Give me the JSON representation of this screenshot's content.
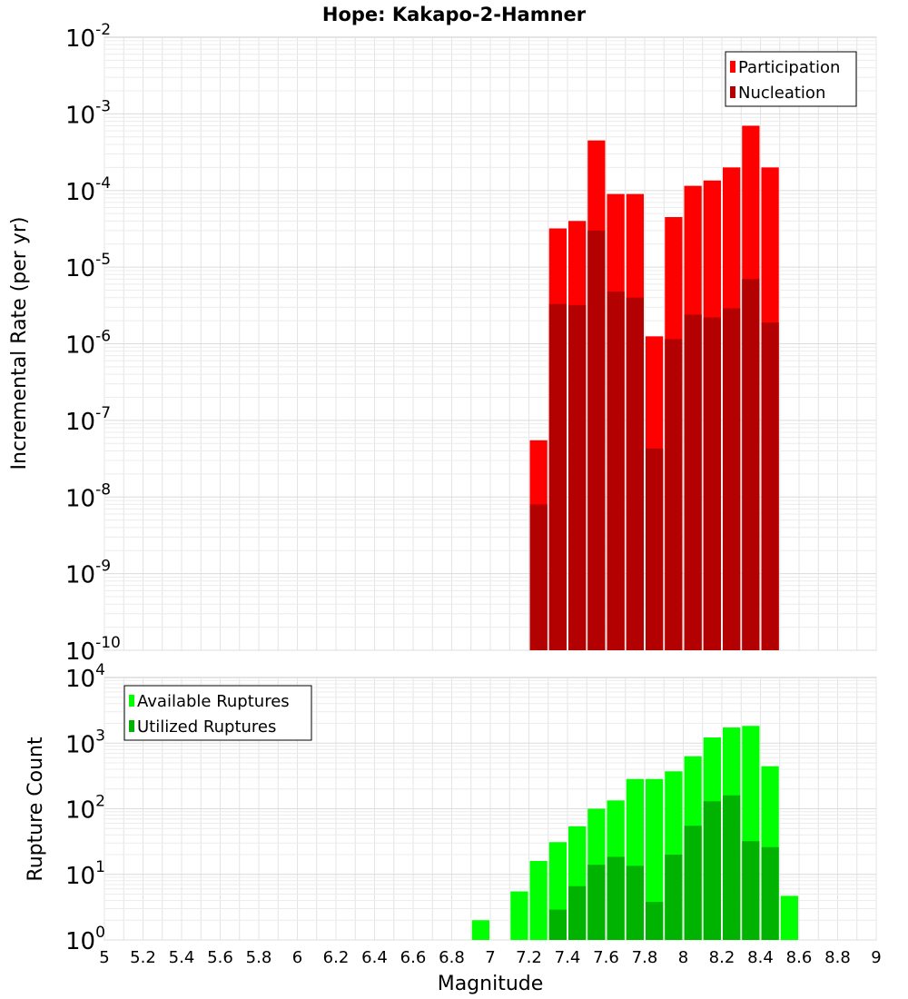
{
  "chart_data": [
    {
      "type": "bar",
      "title": "Hope: Kakapo-2-Hamner",
      "xlabel": "",
      "ylabel": "Incremental Rate (per yr)",
      "xlim": [
        5,
        9
      ],
      "ylim_exp": [
        -10,
        -2
      ],
      "yscale": "log",
      "grid": true,
      "legend_position": "top-right",
      "x": [
        7.25,
        7.35,
        7.45,
        7.55,
        7.65,
        7.75,
        7.85,
        7.95,
        8.05,
        8.15,
        8.25,
        8.35,
        8.45
      ],
      "series": [
        {
          "name": "Participation",
          "color": "#ff0000",
          "values": [
            5.5e-08,
            3.2e-05,
            4e-05,
            0.00045,
            9e-05,
            9e-05,
            1.25e-06,
            4.5e-05,
            0.000115,
            0.000135,
            0.0002,
            0.0007,
            0.0002
          ]
        },
        {
          "name": "Nucleation",
          "color": "#b30000",
          "values": [
            8e-09,
            3.3e-06,
            3.2e-06,
            3e-05,
            4.8e-06,
            4e-06,
            4.3e-08,
            1.15e-06,
            2.4e-06,
            2.2e-06,
            2.9e-06,
            7e-06,
            1.9e-06
          ]
        }
      ]
    },
    {
      "type": "bar",
      "title": "",
      "xlabel": "Magnitude",
      "ylabel": "Rupture Count",
      "xlim": [
        5,
        9
      ],
      "ylim_exp": [
        0,
        4
      ],
      "yscale": "log",
      "grid": true,
      "legend_position": "top-left",
      "xticks": [
        "5",
        "5.2",
        "5.4",
        "5.6",
        "5.8",
        "6",
        "6.2",
        "6.4",
        "6.6",
        "6.8",
        "7",
        "7.2",
        "7.4",
        "7.6",
        "7.8",
        "8",
        "8.2",
        "8.4",
        "8.6",
        "8.8",
        "9"
      ],
      "x": [
        6.35,
        6.85,
        6.95,
        7.05,
        7.15,
        7.25,
        7.35,
        7.45,
        7.55,
        7.65,
        7.75,
        7.85,
        7.95,
        8.05,
        8.15,
        8.25,
        8.35,
        8.45,
        8.55
      ],
      "series": [
        {
          "name": "Available Ruptures",
          "color": "#00ff00",
          "values": [
            1,
            1,
            2,
            1,
            5.5,
            16,
            31,
            54,
            100,
            134,
            284,
            284,
            372,
            630,
            1220,
            1730,
            1830,
            445,
            4.7
          ]
        },
        {
          "name": "Utilized Ruptures",
          "color": "#00b300",
          "values": [
            null,
            null,
            null,
            null,
            null,
            1,
            2.9,
            6.6,
            14,
            18.5,
            13.5,
            3.8,
            20,
            55,
            130,
            160,
            32,
            26,
            null
          ]
        }
      ]
    }
  ]
}
